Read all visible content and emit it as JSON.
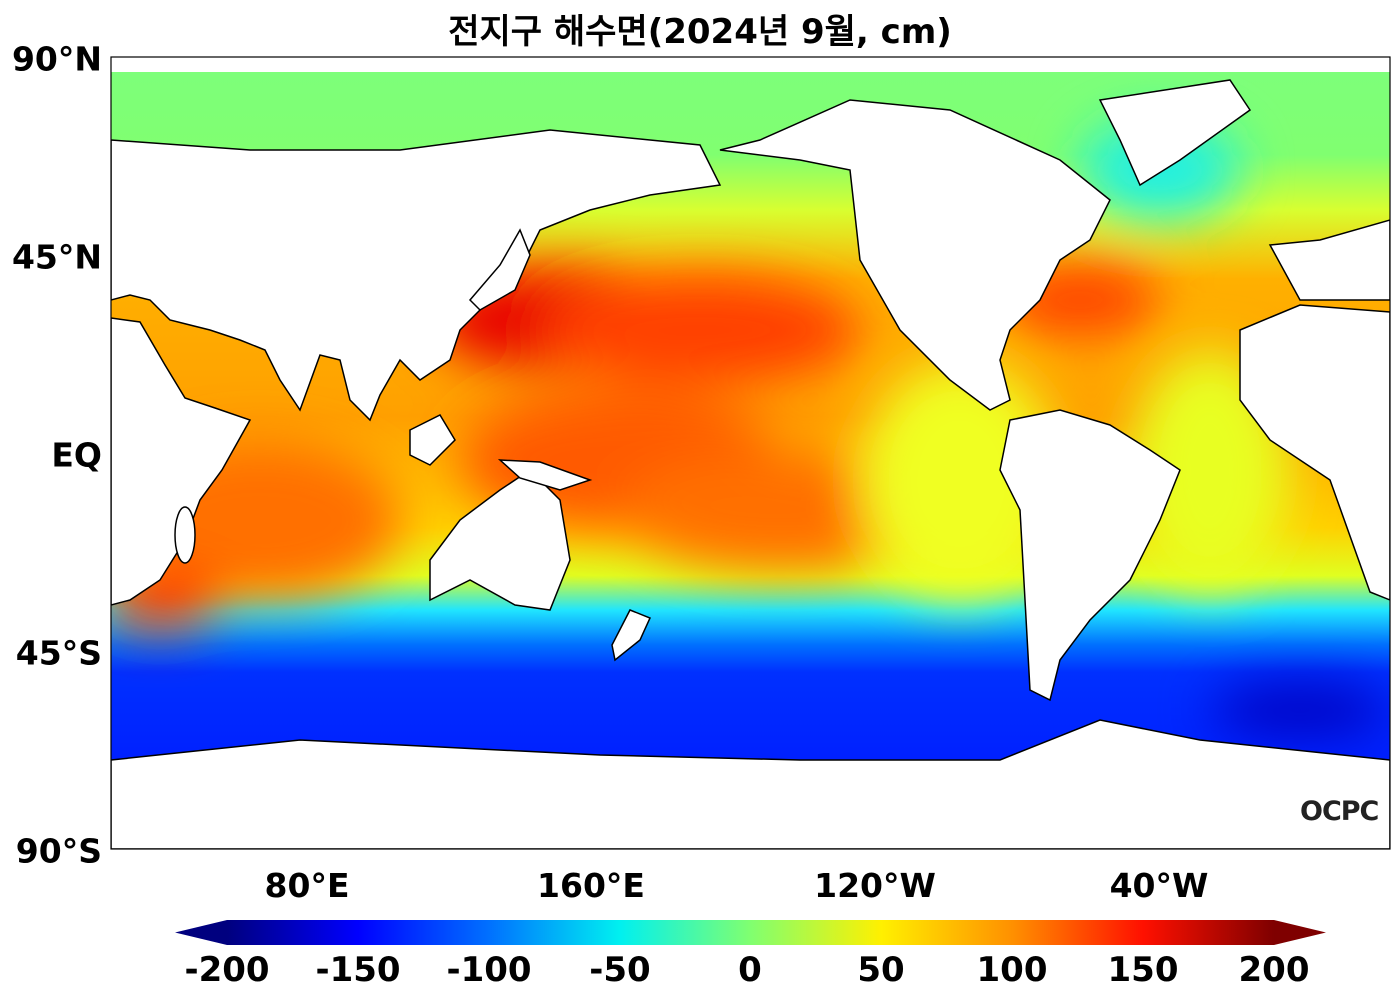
{
  "title": "전지구 해수면(2024년 9월, cm)",
  "map": {
    "projection": "equirectangular",
    "lon_range": [
      "25°E",
      "25°E (360° span, centered on Pacific)"
    ],
    "y_axis_labels": [
      "90°N",
      "45°N",
      "EQ",
      "45°S",
      "90°S"
    ],
    "x_axis_labels": [
      "80°E",
      "160°E",
      "120°W",
      "40°W"
    ],
    "land_color": "#ffffff",
    "coastline_color": "#000000"
  },
  "colorbar": {
    "colormap": "jet",
    "min": -200,
    "max": 200,
    "extend": "both",
    "ticks": [
      "-200",
      "-150",
      "-100",
      "-50",
      "0",
      "50",
      "100",
      "150",
      "200"
    ],
    "colors": [
      "#00007f",
      "#0000ff",
      "#0080ff",
      "#00e5ff",
      "#7dff7a",
      "#ffea00",
      "#ff8c00",
      "#ff1a00",
      "#7f0000"
    ]
  },
  "logo": "OCPC"
}
